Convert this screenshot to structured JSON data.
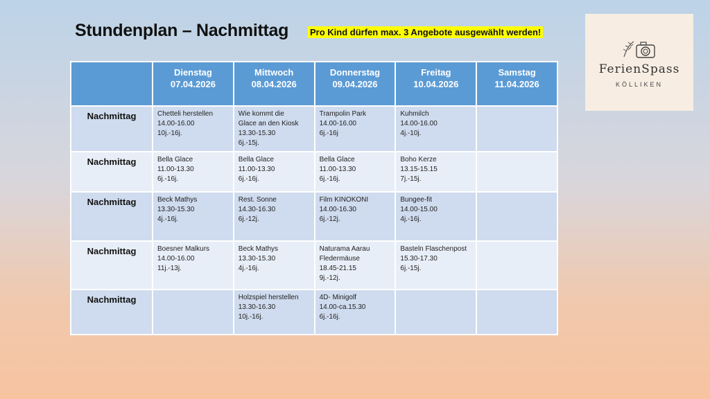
{
  "title": "Stundenplan – Nachmittag",
  "notice": "Pro Kind dürfen max. 3 Angebote ausgewählt werden!",
  "logo": {
    "title": "FerienSpass",
    "subtitle": "KÖLLIKEN",
    "icon": "camera-icon"
  },
  "table": {
    "days": [
      {
        "name": "Dienstag",
        "date": "07.04.2026"
      },
      {
        "name": "Mittwoch",
        "date": "08.04.2026"
      },
      {
        "name": "Donnerstag",
        "date": "09.04.2026"
      },
      {
        "name": "Freitag",
        "date": "10.04.2026"
      },
      {
        "name": "Samstag",
        "date": "11.04.2026"
      }
    ],
    "rows": [
      {
        "label": "Nachmittag",
        "cells": [
          {
            "lines": [
              "Chetteli herstellen",
              "14.00-16.00",
              "10j.-16j."
            ]
          },
          {
            "lines": [
              "Wie kommt die",
              "Glace an den Kiosk",
              "13.30-15.30",
              "6j.-15j."
            ]
          },
          {
            "lines": [
              "Trampolin Park",
              "14.00-16.00",
              "6j.-16j"
            ]
          },
          {
            "lines": [
              "Kuhmilch",
              "14.00-16.00",
              "4j.-10j."
            ]
          },
          {
            "lines": []
          }
        ]
      },
      {
        "label": "Nachmittag",
        "cells": [
          {
            "lines": [
              "Bella Glace",
              "11.00-13.30",
              "6j.-16j."
            ]
          },
          {
            "lines": [
              "Bella Glace",
              "11.00-13.30",
              "6j.-16j."
            ]
          },
          {
            "lines": [
              "Bella Glace",
              "11.00-13.30",
              "6j.-16j."
            ]
          },
          {
            "lines": [
              "Boho Kerze",
              "13.15-15.15",
              "7j.-15j."
            ]
          },
          {
            "lines": []
          }
        ]
      },
      {
        "label": "Nachmittag",
        "cells": [
          {
            "lines": [
              "Beck Mathys",
              "13.30-15.30",
              "4j.-16j."
            ]
          },
          {
            "lines": [
              "Rest. Sonne",
              "14.30-16.30",
              "6j.-12j."
            ]
          },
          {
            "lines": [
              "Film KINOKONI",
              "14.00-16.30",
              "6j.-12j."
            ]
          },
          {
            "lines": [
              "Bungee-fit",
              "14.00-15.00",
              "4j.-16j."
            ]
          },
          {
            "lines": []
          }
        ]
      },
      {
        "label": "Nachmittag",
        "cells": [
          {
            "lines": [
              "Boesner Malkurs",
              "14.00-16.00",
              "11j.-13j."
            ]
          },
          {
            "lines": [
              "Beck Mathys",
              "13.30-15.30",
              "4j.-16j."
            ]
          },
          {
            "lines": [
              "Naturama Aarau",
              "Fledermäuse",
              "18.45-21.15",
              "9j.-12j."
            ]
          },
          {
            "lines": [
              "Basteln Flaschenpost",
              "15.30-17.30",
              "6j.-15j."
            ]
          },
          {
            "lines": []
          }
        ]
      },
      {
        "label": "Nachmittag",
        "cells": [
          {
            "lines": []
          },
          {
            "lines": [
              "Holzspiel herstellen",
              "13.30-16.30",
              "10j.-16j."
            ]
          },
          {
            "lines": [
              "4D- Minigolf",
              "14.00-ca.15.30",
              "6j.-16j."
            ]
          },
          {
            "lines": []
          },
          {
            "lines": []
          }
        ]
      }
    ]
  }
}
